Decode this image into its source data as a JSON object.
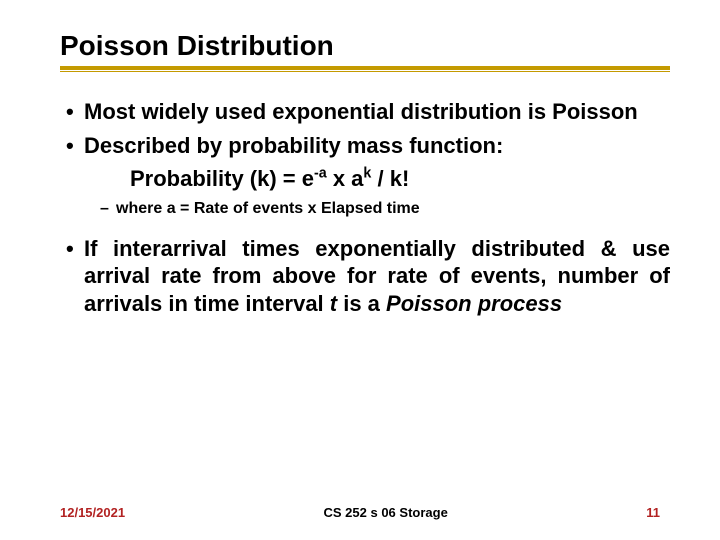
{
  "title": "Poisson Distribution",
  "bullets": {
    "b1": "Most widely used exponential distribution is Poisson",
    "b2": "Described by probability mass function:",
    "b3_pre": "If interarrival times exponentially distributed & use arrival rate from above for rate of events, number of arrivals in time interval ",
    "b3_t": "t",
    "b3_mid": " is a ",
    "b3_poisson": "Poisson process"
  },
  "formula": {
    "pre": "Probability (k) = e",
    "sup1": "-a",
    "mid1": " x a",
    "sup2": "k",
    "mid2": " / k!"
  },
  "sub": "where a = Rate of events x Elapsed time",
  "footer": {
    "date": "12/15/2021",
    "course": "CS 252 s 06 Storage",
    "page": "11"
  },
  "colors": {
    "rule": "#c49a00",
    "accent": "#b22222",
    "text": "#000000",
    "bg": "#ffffff"
  }
}
